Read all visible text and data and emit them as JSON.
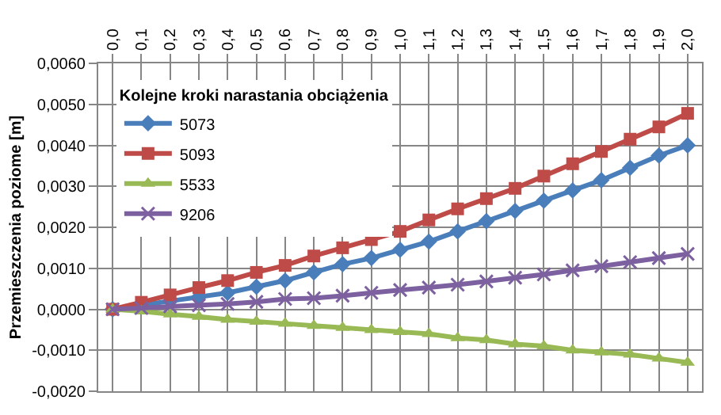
{
  "chart_data": {
    "type": "line",
    "ylabel": "Przemieszczenia poziome [m]",
    "legend_title": "Kolejne kroki narastania obciążenia",
    "categories": [
      "0,0",
      "0,1",
      "0,2",
      "0,3",
      "0,4",
      "0,5",
      "0,6",
      "0,7",
      "0,8",
      "0,9",
      "1,0",
      "1,1",
      "1,2",
      "1,3",
      "1,4",
      "1,5",
      "1,6",
      "1,7",
      "1,8",
      "1,9",
      "2,0"
    ],
    "series": [
      {
        "name": "5073",
        "color": "#4a7ebb",
        "marker": "diamond",
        "values": [
          0,
          0.0001,
          0.0002,
          0.0003,
          0.0004,
          0.00055,
          0.0007,
          0.0009,
          0.0011,
          0.00125,
          0.00145,
          0.00165,
          0.0019,
          0.00215,
          0.0024,
          0.00265,
          0.0029,
          0.00315,
          0.00345,
          0.00375,
          0.004
        ]
      },
      {
        "name": "5093",
        "color": "#be4b48",
        "marker": "square",
        "values": [
          0,
          0.00017,
          0.00035,
          0.00053,
          0.0007,
          0.0009,
          0.00107,
          0.0013,
          0.0015,
          0.0017,
          0.0019,
          0.00218,
          0.00245,
          0.0027,
          0.00295,
          0.00325,
          0.00355,
          0.00385,
          0.00415,
          0.00445,
          0.00478
        ]
      },
      {
        "name": "5533",
        "color": "#98b954",
        "marker": "triangle",
        "values": [
          0,
          -5e-05,
          -0.00012,
          -0.00018,
          -0.00025,
          -0.0003,
          -0.00035,
          -0.0004,
          -0.00045,
          -0.0005,
          -0.00055,
          -0.0006,
          -0.0007,
          -0.00075,
          -0.00085,
          -0.0009,
          -0.001,
          -0.00105,
          -0.0011,
          -0.0012,
          -0.0013
        ]
      },
      {
        "name": "9206",
        "color": "#7d60a0",
        "marker": "cross",
        "values": [
          0,
          3e-05,
          7e-05,
          0.0001,
          0.00013,
          0.00018,
          0.00025,
          0.00027,
          0.00033,
          0.0004,
          0.00047,
          0.00053,
          0.0006,
          0.00068,
          0.00077,
          0.00085,
          0.00095,
          0.00105,
          0.00115,
          0.00125,
          0.00135
        ]
      }
    ],
    "ylim": [
      -0.002,
      0.006
    ],
    "yticks": [
      {
        "value": -0.002,
        "label": "-0,0020"
      },
      {
        "value": -0.001,
        "label": "-0,0010"
      },
      {
        "value": 0,
        "label": "0,0000"
      },
      {
        "value": 0.001,
        "label": "0,0010"
      },
      {
        "value": 0.002,
        "label": "0,0020"
      },
      {
        "value": 0.003,
        "label": "0,0030"
      },
      {
        "value": 0.004,
        "label": "0,0040"
      },
      {
        "value": 0.005,
        "label": "0,0050"
      },
      {
        "value": 0.006,
        "label": "0,0060"
      }
    ],
    "grid": true,
    "legend": "top left",
    "line_style": "solid"
  }
}
